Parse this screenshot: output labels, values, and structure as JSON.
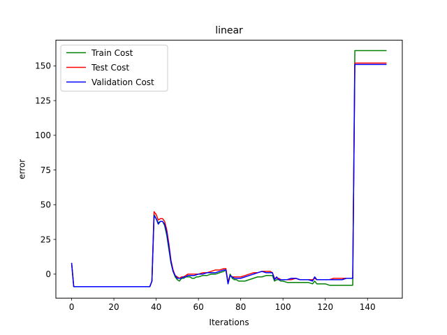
{
  "chart_data": {
    "type": "line",
    "title": "linear",
    "xlabel": "Iterations",
    "ylabel": "error",
    "xlim": [
      -7.45,
      156.45
    ],
    "ylim": [
      -17.3,
      168.5
    ],
    "xticks": [
      0,
      20,
      40,
      60,
      80,
      100,
      120,
      140
    ],
    "yticks": [
      0,
      25,
      50,
      75,
      100,
      125,
      150
    ],
    "grid": false,
    "legend_position": "top-left",
    "series": [
      {
        "name": "Train Cost",
        "color": "#008000",
        "points": [
          [
            0,
            8
          ],
          [
            1,
            -9
          ],
          [
            2,
            -9
          ],
          [
            10,
            -9
          ],
          [
            20,
            -9
          ],
          [
            30,
            -9
          ],
          [
            37,
            -9
          ],
          [
            38,
            -5
          ],
          [
            39,
            43
          ],
          [
            40,
            40
          ],
          [
            41,
            37
          ],
          [
            42,
            38
          ],
          [
            43,
            38
          ],
          [
            44,
            35
          ],
          [
            45,
            28
          ],
          [
            46,
            18
          ],
          [
            47,
            8
          ],
          [
            48,
            2
          ],
          [
            49,
            -2
          ],
          [
            50,
            -4
          ],
          [
            51,
            -5
          ],
          [
            52,
            -3
          ],
          [
            53,
            -3
          ],
          [
            54,
            -2
          ],
          [
            55,
            -2
          ],
          [
            56,
            -2
          ],
          [
            57,
            -3
          ],
          [
            58,
            -3
          ],
          [
            59,
            -2
          ],
          [
            60,
            -2
          ],
          [
            62,
            -1
          ],
          [
            64,
            -1
          ],
          [
            66,
            0
          ],
          [
            68,
            0
          ],
          [
            70,
            1
          ],
          [
            72,
            2
          ],
          [
            73,
            3
          ],
          [
            74,
            -6
          ],
          [
            75,
            0
          ],
          [
            76,
            -3
          ],
          [
            77,
            -4
          ],
          [
            78,
            -4
          ],
          [
            79,
            -5
          ],
          [
            80,
            -5
          ],
          [
            82,
            -5
          ],
          [
            84,
            -4
          ],
          [
            86,
            -3
          ],
          [
            88,
            -2
          ],
          [
            90,
            -2
          ],
          [
            92,
            -1
          ],
          [
            94,
            -1
          ],
          [
            95,
            -1
          ],
          [
            96,
            -5
          ],
          [
            97,
            -4
          ],
          [
            98,
            -4
          ],
          [
            99,
            -5
          ],
          [
            100,
            -5
          ],
          [
            102,
            -6
          ],
          [
            104,
            -6
          ],
          [
            106,
            -6
          ],
          [
            108,
            -6
          ],
          [
            110,
            -6
          ],
          [
            112,
            -6
          ],
          [
            114,
            -7
          ],
          [
            115,
            -5
          ],
          [
            116,
            -7
          ],
          [
            118,
            -7
          ],
          [
            120,
            -7
          ],
          [
            122,
            -8
          ],
          [
            124,
            -8
          ],
          [
            126,
            -8
          ],
          [
            128,
            -8
          ],
          [
            130,
            -8
          ],
          [
            132,
            -8
          ],
          [
            133,
            -8
          ],
          [
            134,
            161
          ],
          [
            140,
            161
          ],
          [
            149,
            161
          ]
        ]
      },
      {
        "name": "Test Cost",
        "color": "#ff0000",
        "points": [
          [
            0,
            8
          ],
          [
            1,
            -9
          ],
          [
            2,
            -9
          ],
          [
            10,
            -9
          ],
          [
            20,
            -9
          ],
          [
            30,
            -9
          ],
          [
            37,
            -9
          ],
          [
            38,
            -5
          ],
          [
            39,
            45
          ],
          [
            40,
            43
          ],
          [
            41,
            39
          ],
          [
            42,
            40
          ],
          [
            43,
            40
          ],
          [
            44,
            38
          ],
          [
            45,
            32
          ],
          [
            46,
            22
          ],
          [
            47,
            10
          ],
          [
            48,
            3
          ],
          [
            49,
            -1
          ],
          [
            50,
            -2
          ],
          [
            51,
            -3
          ],
          [
            52,
            -2
          ],
          [
            53,
            -2
          ],
          [
            54,
            -1
          ],
          [
            55,
            0
          ],
          [
            56,
            0
          ],
          [
            58,
            0
          ],
          [
            60,
            0
          ],
          [
            62,
            1
          ],
          [
            64,
            1
          ],
          [
            66,
            2
          ],
          [
            68,
            3
          ],
          [
            70,
            3
          ],
          [
            72,
            4
          ],
          [
            73,
            4
          ],
          [
            74,
            -6
          ],
          [
            75,
            -1
          ],
          [
            76,
            -2
          ],
          [
            77,
            -2
          ],
          [
            78,
            -2
          ],
          [
            79,
            -2
          ],
          [
            80,
            -2
          ],
          [
            82,
            -1
          ],
          [
            84,
            0
          ],
          [
            86,
            1
          ],
          [
            88,
            1
          ],
          [
            90,
            2
          ],
          [
            92,
            2
          ],
          [
            94,
            2
          ],
          [
            95,
            1
          ],
          [
            96,
            -3
          ],
          [
            97,
            -3
          ],
          [
            98,
            -3
          ],
          [
            99,
            -4
          ],
          [
            100,
            -4
          ],
          [
            102,
            -4
          ],
          [
            104,
            -4
          ],
          [
            106,
            -3
          ],
          [
            108,
            -4
          ],
          [
            110,
            -4
          ],
          [
            112,
            -4
          ],
          [
            114,
            -4
          ],
          [
            115,
            -3
          ],
          [
            116,
            -4
          ],
          [
            118,
            -4
          ],
          [
            120,
            -4
          ],
          [
            122,
            -4
          ],
          [
            124,
            -3
          ],
          [
            126,
            -3
          ],
          [
            128,
            -3
          ],
          [
            130,
            -3
          ],
          [
            132,
            -3
          ],
          [
            133,
            -3
          ],
          [
            134,
            152
          ],
          [
            140,
            152
          ],
          [
            149,
            152
          ]
        ]
      },
      {
        "name": "Validation Cost",
        "color": "#0000ff",
        "points": [
          [
            0,
            8
          ],
          [
            1,
            -9
          ],
          [
            2,
            -9
          ],
          [
            10,
            -9
          ],
          [
            20,
            -9
          ],
          [
            30,
            -9
          ],
          [
            37,
            -9
          ],
          [
            38,
            -5
          ],
          [
            39,
            42
          ],
          [
            40,
            40
          ],
          [
            41,
            36
          ],
          [
            42,
            38
          ],
          [
            43,
            38
          ],
          [
            44,
            36
          ],
          [
            45,
            30
          ],
          [
            46,
            20
          ],
          [
            47,
            9
          ],
          [
            48,
            2
          ],
          [
            49,
            -1
          ],
          [
            50,
            -3
          ],
          [
            51,
            -3
          ],
          [
            52,
            -3
          ],
          [
            53,
            -2
          ],
          [
            54,
            -2
          ],
          [
            55,
            -1
          ],
          [
            56,
            -1
          ],
          [
            58,
            -1
          ],
          [
            60,
            0
          ],
          [
            62,
            0
          ],
          [
            64,
            1
          ],
          [
            66,
            1
          ],
          [
            68,
            1
          ],
          [
            70,
            2
          ],
          [
            72,
            3
          ],
          [
            73,
            3
          ],
          [
            74,
            -7
          ],
          [
            75,
            -1
          ],
          [
            76,
            -2
          ],
          [
            77,
            -3
          ],
          [
            78,
            -3
          ],
          [
            79,
            -3
          ],
          [
            80,
            -3
          ],
          [
            82,
            -2
          ],
          [
            84,
            -1
          ],
          [
            86,
            0
          ],
          [
            88,
            1
          ],
          [
            90,
            2
          ],
          [
            92,
            1
          ],
          [
            94,
            1
          ],
          [
            95,
            1
          ],
          [
            96,
            -4
          ],
          [
            97,
            -2
          ],
          [
            98,
            -4
          ],
          [
            99,
            -4
          ],
          [
            100,
            -4
          ],
          [
            102,
            -4
          ],
          [
            104,
            -3
          ],
          [
            106,
            -3
          ],
          [
            108,
            -4
          ],
          [
            110,
            -4
          ],
          [
            112,
            -4
          ],
          [
            114,
            -5
          ],
          [
            115,
            -2
          ],
          [
            116,
            -4
          ],
          [
            118,
            -4
          ],
          [
            120,
            -4
          ],
          [
            122,
            -4
          ],
          [
            124,
            -4
          ],
          [
            126,
            -4
          ],
          [
            128,
            -4
          ],
          [
            130,
            -3
          ],
          [
            132,
            -3
          ],
          [
            133,
            -3
          ],
          [
            134,
            151
          ],
          [
            140,
            151
          ],
          [
            149,
            151
          ]
        ]
      }
    ]
  }
}
